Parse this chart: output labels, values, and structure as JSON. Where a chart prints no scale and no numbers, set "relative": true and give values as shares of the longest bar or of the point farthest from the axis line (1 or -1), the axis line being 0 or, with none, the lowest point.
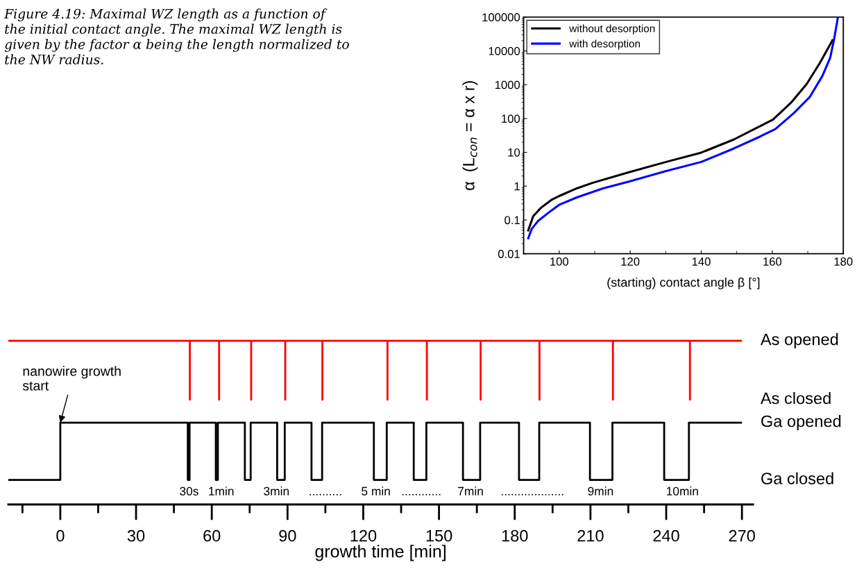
{
  "chart_data": [
    {
      "type": "line",
      "xlabel": "(starting) contact angle β [°]",
      "ylabel": "α  (L$_{con}$ = α x r)",
      "log": "y",
      "legend": "top left",
      "grid": false,
      "annotations": [
        "Figure 4.19: Maximal WZ length as a function of\nthe initial contact angle. The maximal WZ length is\ngiven by the factor α being the length normalized to\nthe NW radius."
      ],
      "xlim": [
        90,
        180
      ],
      "xticks": [
        100,
        {
          "value": 110,
          "label": null
        },
        120,
        {
          "value": 130,
          "label": null
        },
        140,
        {
          "value": 150,
          "label": null
        },
        160,
        {
          "value": 170,
          "label": null
        },
        180
      ],
      "ylim": [
        0.01,
        100000
      ],
      "yticks": [
        0.01,
        0.1,
        1,
        10,
        100,
        1000,
        10000,
        100000
      ],
      "series": [
        {
          "name": "without desorption",
          "color": "#000000",
          "x": [
            91.2,
            92.7,
            94.9,
            97.8,
            100,
            105.1,
            109.5,
            119.8,
            130.1,
            140,
            149.2,
            155,
            160.2,
            165.3,
            169.7,
            173.4,
            177.1
          ],
          "values": [
            0.046,
            0.13,
            0.23,
            0.39,
            0.51,
            0.87,
            1.26,
            2.6,
            5.2,
            9.8,
            24,
            49,
            93,
            295,
            1050,
            4400,
            21800
          ]
        },
        {
          "name": "with desorption",
          "color": "#0000ff",
          "x": [
            91.2,
            92.3,
            94.1,
            97.8,
            100,
            105.1,
            112.5,
            119.8,
            130.1,
            140,
            149.2,
            156.5,
            160.9,
            166.1,
            170.5,
            174.1,
            176.3,
            177.4,
            178.5
          ],
          "values": [
            0.027,
            0.055,
            0.094,
            0.19,
            0.28,
            0.47,
            0.87,
            1.38,
            2.8,
            5.2,
            13,
            29,
            49,
            145,
            425,
            1800,
            6200,
            21800,
            100000
          ]
        }
      ]
    },
    {
      "type": "line",
      "relative": true,
      "xlabel": "growth time [min]",
      "legend": false,
      "grid": false,
      "xlim": [
        -20.6,
        274.4
      ],
      "xticks": [
        {
          "value": -15,
          "label": null
        },
        0,
        {
          "value": 15,
          "label": null
        },
        30,
        {
          "value": 45,
          "label": null
        },
        60,
        {
          "value": 75,
          "label": null
        },
        90,
        {
          "value": 105,
          "label": null
        },
        120,
        {
          "value": 135,
          "label": null
        },
        150,
        {
          "value": 165,
          "label": null
        },
        180,
        {
          "value": 195,
          "label": null
        },
        210,
        {
          "value": 225,
          "label": null
        },
        240,
        {
          "value": 255,
          "label": null
        },
        270
      ],
      "annotations": [
        {
          "text": "nanowire growth\nstart",
          "x": 0,
          "y": 0.5
        },
        "As opened",
        "As closed",
        "Ga opened",
        "Ga closed",
        "30s",
        "1min",
        "3min",
        "..........",
        "5 min",
        "............",
        "7min",
        "...................",
        "9min",
        "10min"
      ],
      "series": [
        {
          "color": "#ff0000",
          "x": [
            -20.6,
            51.3,
            51.3,
            51.3,
            62.9,
            62.9,
            62.9,
            75.6,
            75.6,
            75.6,
            89.1,
            89.1,
            89.1,
            103.8,
            103.8,
            103.8,
            129.6,
            129.6,
            129.6,
            145.2,
            145.2,
            145.2,
            166.5,
            166.5,
            166.5,
            189.8,
            189.8,
            189.8,
            218.9,
            218.9,
            218.9,
            249.4,
            249.4,
            249.4,
            270
          ],
          "values": [
            1,
            1,
            0.64,
            1,
            1,
            0.64,
            1,
            1,
            0.64,
            1,
            1,
            0.64,
            1,
            1,
            0.64,
            1,
            1,
            0.64,
            1,
            1,
            0.64,
            1,
            1,
            0.64,
            1,
            1,
            0.64,
            1,
            1,
            0.64,
            1,
            1,
            0.64,
            1,
            1
          ]
        },
        {
          "color": "#000000",
          "x": [
            -20.6,
            0,
            0,
            50.5,
            50.5,
            51.2,
            51.2,
            61.6,
            61.6,
            62.4,
            62.4,
            73.1,
            73.1,
            75.4,
            75.4,
            85.9,
            85.9,
            88.9,
            88.9,
            99.5,
            99.5,
            103.7,
            103.7,
            124.2,
            124.2,
            129.3,
            129.3,
            140,
            140,
            145,
            145,
            159.5,
            159.5,
            166.3,
            166.3,
            181.7,
            181.7,
            189.7,
            189.7,
            209.8,
            209.8,
            218.7,
            218.7,
            239.2,
            239.2,
            249,
            249,
            270
          ],
          "values": [
            0.15,
            0.15,
            0.5,
            0.5,
            0.15,
            0.15,
            0.5,
            0.5,
            0.15,
            0.15,
            0.5,
            0.5,
            0.15,
            0.15,
            0.5,
            0.5,
            0.15,
            0.15,
            0.5,
            0.5,
            0.15,
            0.15,
            0.5,
            0.5,
            0.15,
            0.15,
            0.5,
            0.5,
            0.15,
            0.15,
            0.5,
            0.5,
            0.15,
            0.15,
            0.5,
            0.5,
            0.15,
            0.15,
            0.5,
            0.5,
            0.15,
            0.15,
            0.5,
            0.5,
            0.15,
            0.15,
            0.5,
            0.5
          ]
        }
      ]
    }
  ]
}
